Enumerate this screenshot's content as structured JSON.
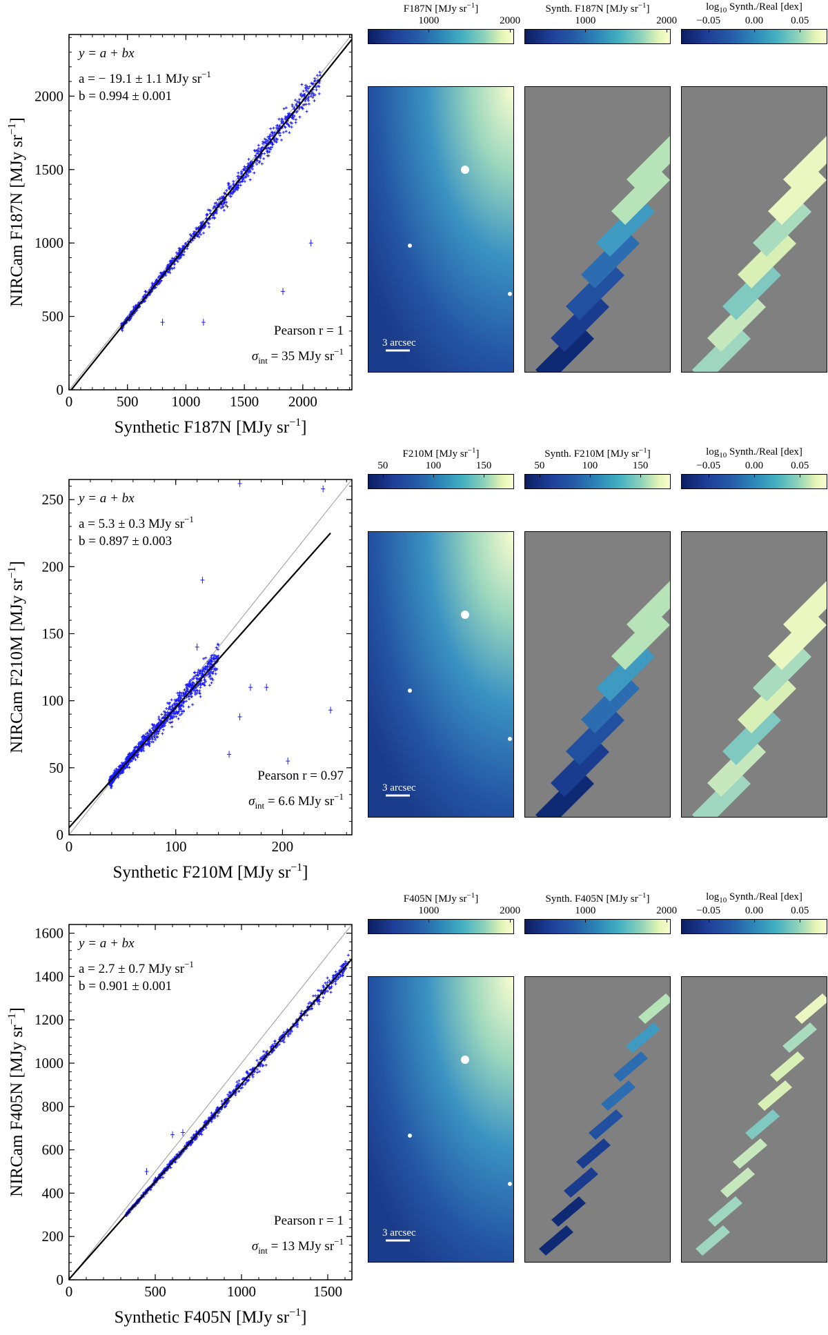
{
  "rows": [
    {
      "id": "f187n",
      "scatter": {
        "xlabel": "Synthetic F187N [MJy sr",
        "ylabel": "NIRCam F187N [MJy sr",
        "unit_exp": "−1",
        "xlim": [
          0,
          2420
        ],
        "ylim": [
          0,
          2420
        ],
        "xticks": [
          0,
          500,
          1000,
          1500,
          2000
        ],
        "yticks": [
          0,
          500,
          1000,
          1500,
          2000
        ],
        "fit_a": -19.1,
        "fit_b": 0.994,
        "eq": "y = a + bx",
        "a_text": "a = − 19.1 ± 1.1 MJy sr",
        "b_text": "b = 0.994 ± 0.001",
        "pearson_text": "Pearson r = 1",
        "sigma_text": "σ",
        "sigma_sub": "int",
        "sigma_value": " = 35 MJy sr",
        "scatter_range": [
          450,
          2150
        ],
        "scatter_noise": 0.035,
        "outliers": [
          [
            2070,
            1000
          ],
          [
            1830,
            670
          ],
          [
            1150,
            460
          ],
          [
            800,
            460
          ]
        ]
      },
      "cbars": [
        {
          "label": "F187N [MJy sr",
          "exp": "−1",
          "close": "]",
          "ticks": [
            "1000",
            "2000"
          ],
          "tick_vals": [
            1000,
            2000
          ],
          "range": [
            250,
            2050
          ]
        },
        {
          "label": "Synth. F187N [MJy sr",
          "exp": "−1",
          "close": "]",
          "ticks": [
            "1000",
            "2000"
          ],
          "tick_vals": [
            1000,
            2000
          ],
          "range": [
            250,
            2050
          ]
        },
        {
          "label": "log",
          "sub": "10",
          "rest": " Synth./Real [dex]",
          "ticks": [
            "−0.05",
            "0.00",
            "0.05"
          ],
          "tick_vals": [
            -0.05,
            0.0,
            0.05
          ],
          "range": [
            -0.08,
            0.08
          ]
        }
      ],
      "scalebar": "3 arcsec",
      "synth_style": "mosaic"
    },
    {
      "id": "f210m",
      "scatter": {
        "xlabel": "Synthetic F210M [MJy sr",
        "ylabel": "NIRCam F210M [MJy sr",
        "unit_exp": "−1",
        "xlim": [
          0,
          265
        ],
        "ylim": [
          0,
          265
        ],
        "xticks": [
          0,
          100,
          200
        ],
        "yticks": [
          0,
          50,
          100,
          150,
          200,
          250
        ],
        "fit_a": 5.3,
        "fit_b": 0.897,
        "eq": "y = a + bx",
        "a_text": "a = 5.3 ± 0.3 MJy sr",
        "b_text": "b = 0.897 ± 0.003",
        "pearson_text": "Pearson r = 0.97",
        "sigma_text": "σ",
        "sigma_sub": "int",
        "sigma_value": " = 6.6 MJy sr",
        "scatter_range": [
          38,
          140
        ],
        "scatter_noise": 0.07,
        "outliers": [
          [
            160,
            262
          ],
          [
            238,
            258
          ],
          [
            125,
            190
          ],
          [
            170,
            110
          ],
          [
            185,
            110
          ],
          [
            150,
            60
          ],
          [
            245,
            93
          ],
          [
            205,
            55
          ],
          [
            160,
            88
          ],
          [
            120,
            140
          ]
        ]
      },
      "cbars": [
        {
          "label": "F210M [MJy sr",
          "exp": "−1",
          "close": "]",
          "ticks": [
            "50",
            "100",
            "150"
          ],
          "tick_vals": [
            50,
            100,
            150
          ],
          "range": [
            35,
            180
          ]
        },
        {
          "label": "Synth. F210M [MJy sr",
          "exp": "−1",
          "close": "]",
          "ticks": [
            "50",
            "100",
            "150"
          ],
          "tick_vals": [
            50,
            100,
            150
          ],
          "range": [
            35,
            180
          ]
        },
        {
          "label": "log",
          "sub": "10",
          "rest": " Synth./Real [dex]",
          "ticks": [
            "−0.05",
            "0.00",
            "0.05"
          ],
          "tick_vals": [
            -0.05,
            0.0,
            0.05
          ],
          "range": [
            -0.08,
            0.08
          ]
        }
      ],
      "scalebar": "3 arcsec",
      "synth_style": "mosaic"
    },
    {
      "id": "f405n",
      "scatter": {
        "xlabel": "Synthetic F405N [MJy sr",
        "ylabel": "NIRCam F405N [MJy sr",
        "unit_exp": "−1",
        "xlim": [
          0,
          1640
        ],
        "ylim": [
          0,
          1640
        ],
        "xticks": [
          0,
          500,
          1000,
          1500
        ],
        "yticks": [
          0,
          200,
          400,
          600,
          800,
          1000,
          1200,
          1400,
          1600
        ],
        "fit_a": 2.7,
        "fit_b": 0.901,
        "eq": "y = a + bx",
        "a_text": "a = 2.7 ± 0.7 MJy sr",
        "b_text": "b = 0.901 ± 0.001",
        "pearson_text": "Pearson r = 1",
        "sigma_text": "σ",
        "sigma_sub": "int",
        "sigma_value": " = 13 MJy sr",
        "scatter_range": [
          330,
          1620
        ],
        "scatter_noise": 0.02,
        "outliers": [
          [
            600,
            670
          ],
          [
            660,
            680
          ],
          [
            450,
            500
          ]
        ]
      },
      "cbars": [
        {
          "label": "F405N [MJy sr",
          "exp": "−1",
          "close": "]",
          "ticks": [
            "1000",
            "2000"
          ],
          "tick_vals": [
            1000,
            2000
          ],
          "range": [
            250,
            2050
          ]
        },
        {
          "label": "Synth. F405N [MJy sr",
          "exp": "−1",
          "close": "]",
          "ticks": [
            "1000",
            "2000"
          ],
          "tick_vals": [
            1000,
            2000
          ],
          "range": [
            250,
            2050
          ]
        },
        {
          "label": "log",
          "sub": "10",
          "rest": " Synth./Real [dex]",
          "ticks": [
            "−0.05",
            "0.00",
            "0.05"
          ],
          "tick_vals": [
            -0.05,
            0.0,
            0.05
          ],
          "range": [
            -0.08,
            0.08
          ]
        }
      ],
      "scalebar": "3 arcsec",
      "synth_style": "stripes"
    }
  ],
  "chart_data": [
    {
      "type": "scatter",
      "title": "",
      "xlabel": "Synthetic F187N [MJy sr^-1]",
      "ylabel": "NIRCam F187N [MJy sr^-1]",
      "xlim": [
        0,
        2420
      ],
      "ylim": [
        0,
        2420
      ],
      "fit": {
        "a": -19.1,
        "a_err": 1.1,
        "b": 0.994,
        "b_err": 0.001
      },
      "pearson_r": 1,
      "sigma_int": 35
    },
    {
      "type": "scatter",
      "title": "",
      "xlabel": "Synthetic F210M [MJy sr^-1]",
      "ylabel": "NIRCam F210M [MJy sr^-1]",
      "xlim": [
        0,
        265
      ],
      "ylim": [
        0,
        265
      ],
      "fit": {
        "a": 5.3,
        "a_err": 0.3,
        "b": 0.897,
        "b_err": 0.003
      },
      "pearson_r": 0.97,
      "sigma_int": 6.6
    },
    {
      "type": "scatter",
      "title": "",
      "xlabel": "Synthetic F405N [MJy sr^-1]",
      "ylabel": "NIRCam F405N [MJy sr^-1]",
      "xlim": [
        0,
        1640
      ],
      "ylim": [
        0,
        1640
      ],
      "fit": {
        "a": 2.7,
        "a_err": 0.7,
        "b": 0.901,
        "b_err": 0.001
      },
      "pearson_r": 1,
      "sigma_int": 13
    }
  ]
}
